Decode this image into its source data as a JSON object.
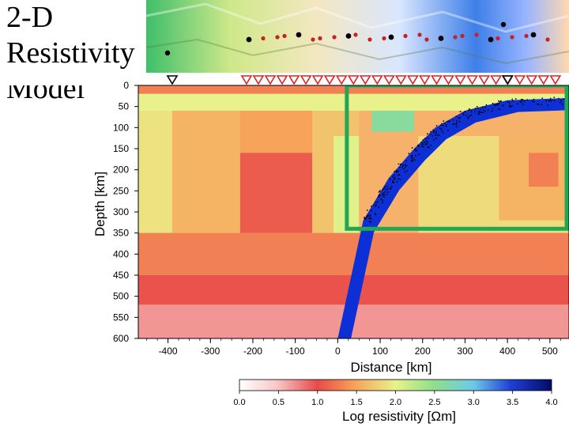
{
  "slide": {
    "title": "2-D\nResistivity\nModel"
  },
  "chart_data": {
    "type": "heatmap",
    "xlabel": "Distance [km]",
    "ylabel": "Depth [km]",
    "xlim": [
      -470,
      545
    ],
    "ylim": [
      0,
      600
    ],
    "x_ticks": [
      -400,
      -300,
      -200,
      -100,
      0,
      100,
      200,
      300,
      400,
      500
    ],
    "y_ticks": [
      0,
      50,
      100,
      150,
      200,
      250,
      300,
      350,
      400,
      450,
      500,
      550,
      600
    ],
    "colorbar": {
      "label": "Log resistivity [Ωm]",
      "range": [
        0.0,
        4.0
      ],
      "ticks": [
        "0.0",
        "0.5",
        "1.0",
        "1.5",
        "2.0",
        "2.5",
        "3.0",
        "3.5",
        "4.0"
      ]
    },
    "resistivity_blocks": [
      {
        "x": [
          -470,
          545
        ],
        "depth": [
          0,
          20
        ],
        "log_rho": 1.3
      },
      {
        "x": [
          -470,
          545
        ],
        "depth": [
          20,
          60
        ],
        "log_rho": 2.0
      },
      {
        "x": [
          -470,
          -390
        ],
        "depth": [
          60,
          350
        ],
        "log_rho": 1.9
      },
      {
        "x": [
          -390,
          -230
        ],
        "depth": [
          60,
          350
        ],
        "log_rho": 1.6
      },
      {
        "x": [
          -230,
          -60
        ],
        "depth": [
          60,
          160
        ],
        "log_rho": 1.5
      },
      {
        "x": [
          -230,
          -60
        ],
        "depth": [
          160,
          350
        ],
        "log_rho": 1.1
      },
      {
        "x": [
          -60,
          50
        ],
        "depth": [
          60,
          350
        ],
        "log_rho": 1.7
      },
      {
        "x": [
          -10,
          50
        ],
        "depth": [
          120,
          350
        ],
        "log_rho": 2.05
      },
      {
        "x": [
          190,
          545
        ],
        "depth": [
          120,
          350
        ],
        "log_rho": 1.85
      },
      {
        "x": [
          380,
          545
        ],
        "depth": [
          120,
          320
        ],
        "log_rho": 1.6
      },
      {
        "x": [
          450,
          520
        ],
        "depth": [
          160,
          240
        ],
        "log_rho": 1.3
      },
      {
        "x": [
          -470,
          545
        ],
        "depth": [
          350,
          450
        ],
        "log_rho": 1.3
      },
      {
        "x": [
          -470,
          545
        ],
        "depth": [
          450,
          520
        ],
        "log_rho": 1.05
      },
      {
        "x": [
          -470,
          545
        ],
        "depth": [
          520,
          600
        ],
        "log_rho": 0.7
      },
      {
        "x": [
          80,
          180
        ],
        "depth": [
          60,
          110
        ],
        "log_rho": 2.6
      }
    ],
    "slab": {
      "log_rho": 4.0,
      "top_x": [
        0,
        60,
        120,
        180,
        230,
        300,
        400,
        545
      ],
      "top_depth": [
        600,
        320,
        220,
        150,
        100,
        60,
        35,
        30
      ],
      "thickness_km": 28
    },
    "target_box": {
      "x": [
        -230,
        545
      ],
      "depth": [
        0,
        340
      ],
      "color": "#22a755"
    },
    "stations": {
      "x_start": -230,
      "x_end": 545,
      "inverted_triangle_color": "#e02020"
    },
    "seismicity": {
      "color": "#000000"
    }
  }
}
